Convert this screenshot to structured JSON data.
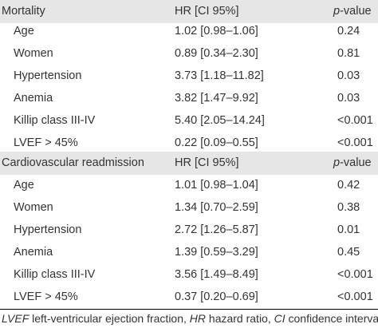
{
  "section1": {
    "label": "Mortality",
    "hr_header": "HR [CI 95%]",
    "p_prefix": "p",
    "p_suffix": "-value",
    "rows": [
      {
        "label": "Age",
        "hr": "1.02 [0.98–1.06]",
        "p": "0.24"
      },
      {
        "label": "Women",
        "hr": "0.89 [0.34–2.30]",
        "p": "0.81"
      },
      {
        "label": "Hypertension",
        "hr": "3.73 [1.18–11.82]",
        "p": "0.03"
      },
      {
        "label": "Anemia",
        "hr": "3.82 [1.47–9.92]",
        "p": "0.03"
      },
      {
        "label": "Killip class III-IV",
        "hr": "5.40 [2.05–14.24]",
        "p": "<0.001"
      },
      {
        "label": "LVEF > 45%",
        "hr": "0.22 [0.09–0.55]",
        "p": "<0.001"
      }
    ]
  },
  "section2": {
    "label": "Cardiovascular readmission",
    "hr_header": "HR [CI 95%]",
    "p_prefix": "p",
    "p_suffix": "-value",
    "rows": [
      {
        "label": "Age",
        "hr": "1.01 [0.98–1.04]",
        "p": "0.42"
      },
      {
        "label": "Women",
        "hr": "1.34 [0.70–2.59]",
        "p": "0.38"
      },
      {
        "label": "Hypertension",
        "hr": "2.72 [1.26–5.87]",
        "p": "0.01"
      },
      {
        "label": "Anemia",
        "hr": "1.39 [0.59–3.29]",
        "p": "0.45"
      },
      {
        "label": "Killip class III-IV",
        "hr": "3.56 [1.49–8.49]",
        "p": "<0.001"
      },
      {
        "label": "LVEF > 45%",
        "hr": "0.37 [0.20–0.69]",
        "p": "<0.001"
      }
    ]
  },
  "footnote": {
    "abbr1": "LVEF",
    "def1": " left-ventricular ejection fraction, ",
    "abbr2": "HR",
    "def2": " hazard ratio, ",
    "abbr3": "CI",
    "def3": " confidence intervals"
  }
}
